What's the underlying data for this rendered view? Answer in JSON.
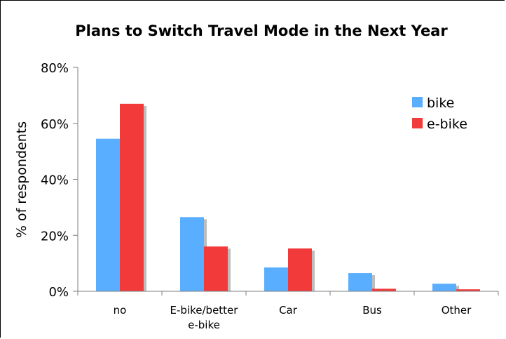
{
  "chart_data": {
    "type": "bar",
    "title": "Plans to Switch Travel Mode in the Next Year",
    "ylabel": "% of respondents",
    "xlabel": "",
    "ylim": [
      0,
      80
    ],
    "yticks": [
      "0%",
      "20%",
      "40%",
      "60%",
      "80%"
    ],
    "ytick_values": [
      0,
      20,
      40,
      60,
      80
    ],
    "categories": [
      "no",
      "E-bike/better e-bike",
      "Car",
      "Bus",
      "Other"
    ],
    "category_lines": [
      [
        "no"
      ],
      [
        "E-bike/better",
        "e-bike"
      ],
      [
        "Car"
      ],
      [
        "Bus"
      ],
      [
        "Other"
      ]
    ],
    "series": [
      {
        "name": "bike",
        "color": "#5aaeff",
        "values": [
          54.5,
          26.5,
          8.5,
          6.5,
          2.7
        ]
      },
      {
        "name": "e-bike",
        "color": "#f23a3a",
        "values": [
          67,
          16,
          15.3,
          0.9,
          0.7
        ]
      }
    ],
    "legend_position": "top-right",
    "grid": false
  }
}
